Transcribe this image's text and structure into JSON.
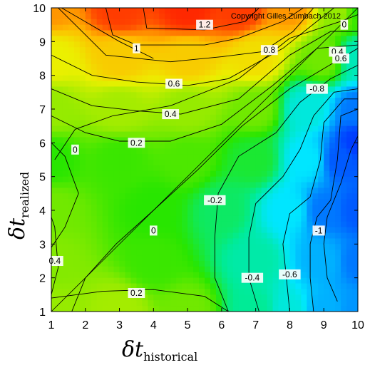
{
  "chart_data": {
    "type": "heatmap",
    "title": "",
    "copyright": "Copyright Gilles Zumbach 2012",
    "xlabel": {
      "symbol": "δt",
      "subscript": "historical"
    },
    "ylabel": {
      "symbol": "δt",
      "subscript": "realized"
    },
    "xlim": [
      1,
      10
    ],
    "ylim": [
      1,
      10
    ],
    "xticks": [
      "1",
      "2",
      "3",
      "4",
      "5",
      "6",
      "7",
      "8",
      "9",
      "10"
    ],
    "yticks": [
      "1",
      "2",
      "3",
      "4",
      "5",
      "6",
      "7",
      "8",
      "9",
      "10"
    ],
    "grid": false,
    "colormap": "jet-like: blue (negative) → cyan → green (zero) → yellow → red (positive)",
    "z_anchor_values": [
      {
        "x": 1,
        "y": 1,
        "z": 0.3
      },
      {
        "x": 3,
        "y": 1,
        "z": 0.35
      },
      {
        "x": 5,
        "y": 1,
        "z": 0.2
      },
      {
        "x": 7,
        "y": 1,
        "z": -0.3
      },
      {
        "x": 8,
        "y": 1,
        "z": -0.5
      },
      {
        "x": 9,
        "y": 1,
        "z": -0.8
      },
      {
        "x": 10,
        "y": 1,
        "z": -0.9
      },
      {
        "x": 1,
        "y": 2.5,
        "z": 0.25
      },
      {
        "x": 4,
        "y": 2.5,
        "z": 0.05
      },
      {
        "x": 7,
        "y": 2.5,
        "z": -0.35
      },
      {
        "x": 9,
        "y": 2.5,
        "z": -0.8
      },
      {
        "x": 10,
        "y": 2.5,
        "z": -1.0
      },
      {
        "x": 1,
        "y": 4,
        "z": 0.2
      },
      {
        "x": 4,
        "y": 4,
        "z": 0
      },
      {
        "x": 6,
        "y": 4,
        "z": -0.2
      },
      {
        "x": 8,
        "y": 4,
        "z": -0.6
      },
      {
        "x": 9,
        "y": 4,
        "z": -1.0
      },
      {
        "x": 10,
        "y": 4,
        "z": -1.1
      },
      {
        "x": 1,
        "y": 5.5,
        "z": 0
      },
      {
        "x": 3,
        "y": 5.5,
        "z": 0.05
      },
      {
        "x": 5,
        "y": 5.5,
        "z": 0.1
      },
      {
        "x": 7,
        "y": 5.5,
        "z": -0.1
      },
      {
        "x": 8.5,
        "y": 5.5,
        "z": -0.6
      },
      {
        "x": 9.5,
        "y": 5.5,
        "z": -1.1
      },
      {
        "x": 10,
        "y": 6,
        "z": -1.2
      },
      {
        "x": 1,
        "y": 7,
        "z": 0.3
      },
      {
        "x": 3,
        "y": 7,
        "z": 0.35
      },
      {
        "x": 5,
        "y": 7,
        "z": 0.3
      },
      {
        "x": 7,
        "y": 7,
        "z": 0.2
      },
      {
        "x": 8.5,
        "y": 7,
        "z": -0.5
      },
      {
        "x": 10,
        "y": 7,
        "z": -1.0
      },
      {
        "x": 1,
        "y": 8.5,
        "z": 0.6
      },
      {
        "x": 3,
        "y": 8.5,
        "z": 0.8
      },
      {
        "x": 5,
        "y": 8.5,
        "z": 0.8
      },
      {
        "x": 7,
        "y": 8.5,
        "z": 0.7
      },
      {
        "x": 9,
        "y": 8.5,
        "z": 0.2
      },
      {
        "x": 10,
        "y": 8.5,
        "z": -0.4
      },
      {
        "x": 1,
        "y": 10,
        "z": 1.0
      },
      {
        "x": 3,
        "y": 10,
        "z": 1.3
      },
      {
        "x": 5,
        "y": 10,
        "z": 1.4
      },
      {
        "x": 6.5,
        "y": 10,
        "z": 1.3
      },
      {
        "x": 8,
        "y": 10,
        "z": 1.0
      },
      {
        "x": 9.5,
        "y": 10,
        "z": 0.3
      },
      {
        "x": 10,
        "y": 10,
        "z": 0.0
      }
    ],
    "contour_labels": [
      {
        "text": "1.2",
        "x": 5.5,
        "y": 9.5
      },
      {
        "text": "1",
        "x": 3.5,
        "y": 8.8
      },
      {
        "text": "0.8",
        "x": 7.4,
        "y": 8.75
      },
      {
        "text": "0",
        "x": 9.6,
        "y": 9.5
      },
      {
        "text": "0.4",
        "x": 9.4,
        "y": 8.7
      },
      {
        "text": "0.6",
        "x": 9.5,
        "y": 8.5
      },
      {
        "text": "0.6",
        "x": 4.6,
        "y": 7.75
      },
      {
        "text": "0.4",
        "x": 4.5,
        "y": 6.85
      },
      {
        "text": "0.2",
        "x": 3.5,
        "y": 6.0
      },
      {
        "text": "-0.8",
        "x": 8.8,
        "y": 7.6
      },
      {
        "text": "0",
        "x": 1.7,
        "y": 5.8
      },
      {
        "text": "-0.2",
        "x": 5.8,
        "y": 4.3
      },
      {
        "text": "0",
        "x": 4.0,
        "y": 3.4
      },
      {
        "text": "-1",
        "x": 8.85,
        "y": 3.4
      },
      {
        "text": "0.4",
        "x": 1.1,
        "y": 2.5
      },
      {
        "text": "-0.4",
        "x": 6.9,
        "y": 2.0
      },
      {
        "text": "-0.6",
        "x": 8.0,
        "y": 2.1
      },
      {
        "text": "0.2",
        "x": 3.5,
        "y": 1.55
      }
    ],
    "contour_lines": [
      {
        "level": "1.2",
        "points": [
          [
            3.7,
            10
          ],
          [
            3.8,
            9.4
          ],
          [
            5.5,
            9.35
          ],
          [
            6.7,
            9.6
          ],
          [
            7.1,
            10
          ]
        ]
      },
      {
        "level": "1",
        "points": [
          [
            2.6,
            10
          ],
          [
            2.8,
            9.2
          ],
          [
            3.5,
            8.9
          ],
          [
            5.5,
            8.9
          ],
          [
            6.5,
            9.1
          ],
          [
            7.8,
            9.6
          ],
          [
            8.4,
            10
          ]
        ]
      },
      {
        "level": "0.8",
        "points": [
          [
            1.2,
            10
          ],
          [
            1.9,
            9.3
          ],
          [
            2.6,
            8.6
          ],
          [
            4.5,
            8.4
          ],
          [
            6.0,
            8.55
          ],
          [
            7.2,
            8.7
          ],
          [
            8.1,
            9.3
          ],
          [
            8.7,
            10
          ]
        ]
      },
      {
        "level": "0.6",
        "points": [
          [
            1,
            8.6
          ],
          [
            2.2,
            8.0
          ],
          [
            3.5,
            7.8
          ],
          [
            5,
            7.7
          ],
          [
            6.2,
            7.9
          ],
          [
            7.8,
            8.8
          ],
          [
            8.8,
            9.6
          ],
          [
            9.3,
            10
          ]
        ]
      },
      {
        "level": "0.4",
        "points": [
          [
            1,
            7.6
          ],
          [
            2.2,
            7.1
          ],
          [
            3.5,
            6.95
          ],
          [
            4.8,
            6.85
          ],
          [
            6.5,
            7.3
          ],
          [
            8.0,
            8.6
          ],
          [
            9.2,
            9.3
          ],
          [
            10,
            9.3
          ]
        ]
      },
      {
        "level": "0.2",
        "points": [
          [
            1,
            6.8
          ],
          [
            2.0,
            6.3
          ],
          [
            3.0,
            6.05
          ],
          [
            4.5,
            6.05
          ],
          [
            6.0,
            6.55
          ],
          [
            7.5,
            7.7
          ],
          [
            8.8,
            8.8
          ],
          [
            10,
            8.9
          ]
        ]
      },
      {
        "level": "0",
        "points": [
          [
            1.1,
            5.5
          ],
          [
            1.7,
            6.4
          ],
          [
            2.8,
            6.8
          ],
          [
            4.5,
            7.1
          ],
          [
            6.5,
            7.9
          ],
          [
            8.0,
            9.1
          ],
          [
            9.5,
            9.6
          ],
          [
            10,
            9.8
          ]
        ]
      },
      {
        "level": "0",
        "points": [
          [
            1.6,
            1
          ],
          [
            2.0,
            2.0
          ],
          [
            2.9,
            3.0
          ],
          [
            4.0,
            4.0
          ],
          [
            5.3,
            5.2
          ],
          [
            6.6,
            6.5
          ],
          [
            8.0,
            7.6
          ],
          [
            9.5,
            8.5
          ],
          [
            10,
            8.8
          ]
        ]
      },
      {
        "level": "0",
        "points": [
          [
            1.3,
            10
          ],
          [
            3.0,
            9.0
          ],
          [
            4.0,
            8.5
          ]
        ]
      },
      {
        "level": "0.2",
        "points": [
          [
            1,
            2.9
          ],
          [
            1.4,
            3.5
          ],
          [
            1.8,
            4.5
          ],
          [
            1.4,
            5.6
          ],
          [
            1,
            6.0
          ]
        ]
      },
      {
        "level": "0.4",
        "points": [
          [
            1,
            1.5
          ],
          [
            1.2,
            2.3
          ],
          [
            1.1,
            3.5
          ],
          [
            1,
            3.8
          ]
        ]
      },
      {
        "level": "0.2",
        "points": [
          [
            1,
            1.4
          ],
          [
            2.5,
            1.6
          ],
          [
            4.0,
            1.65
          ],
          [
            5.5,
            1.45
          ],
          [
            6.2,
            1
          ]
        ]
      },
      {
        "level": "-0.2",
        "points": [
          [
            6.2,
            1
          ],
          [
            5.8,
            2.0
          ],
          [
            5.8,
            3.2
          ],
          [
            5.9,
            4.5
          ],
          [
            6.5,
            5.6
          ],
          [
            7.6,
            6.3
          ],
          [
            8.3,
            7.2
          ],
          [
            9.2,
            7.9
          ],
          [
            10,
            8.3
          ]
        ]
      },
      {
        "level": "-0.4",
        "points": [
          [
            7.1,
            1
          ],
          [
            6.8,
            2.0
          ],
          [
            6.8,
            3.2
          ],
          [
            7.0,
            4.2
          ],
          [
            7.8,
            5.0
          ],
          [
            8.3,
            5.8
          ],
          [
            8.7,
            6.8
          ],
          [
            9.3,
            7.5
          ],
          [
            10,
            7.6
          ]
        ]
      },
      {
        "level": "-0.6",
        "points": [
          [
            8.0,
            1
          ],
          [
            7.9,
            2.0
          ],
          [
            7.8,
            3.0
          ],
          [
            8.0,
            3.9
          ],
          [
            8.6,
            4.4
          ],
          [
            8.9,
            5.5
          ],
          [
            9.0,
            6.6
          ],
          [
            9.6,
            7.3
          ],
          [
            10,
            7.3
          ]
        ]
      },
      {
        "level": "-0.8",
        "points": [
          [
            8.7,
            1
          ],
          [
            8.6,
            2.0
          ],
          [
            8.6,
            3.0
          ],
          [
            8.8,
            3.8
          ],
          [
            9.2,
            4.3
          ],
          [
            9.4,
            5.5
          ],
          [
            9.5,
            6.8
          ],
          [
            10,
            7.0
          ]
        ]
      },
      {
        "level": "-1",
        "points": [
          [
            9.4,
            1.3
          ],
          [
            9.1,
            2.0
          ],
          [
            9.0,
            3.0
          ],
          [
            9.1,
            3.8
          ],
          [
            9.5,
            4.8
          ],
          [
            9.8,
            5.8
          ],
          [
            10,
            6.2
          ]
        ]
      }
    ]
  }
}
